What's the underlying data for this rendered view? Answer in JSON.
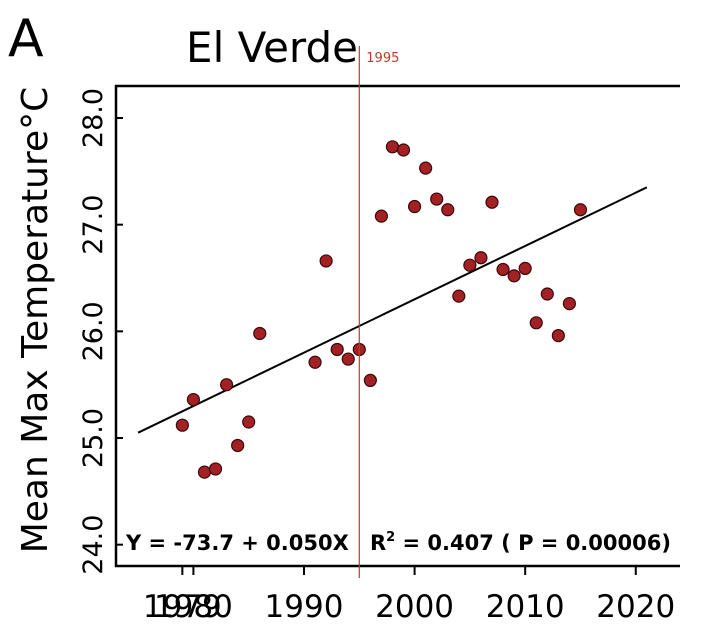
{
  "panel_label": "A",
  "chart_data": {
    "type": "scatter",
    "title": "El Verde",
    "xlabel": "",
    "ylabel": "Mean Max Temperature°C",
    "xlim": [
      1973,
      2024
    ],
    "ylim": [
      23.8,
      28.3
    ],
    "x_ticks": [
      1979,
      1980,
      1990,
      2000,
      2010,
      2020
    ],
    "y_ticks": [
      24.0,
      25.0,
      26.0,
      27.0,
      28.0
    ],
    "y_tick_labels": [
      "24.0",
      "25.0",
      "26.0",
      "27.0",
      "28.0"
    ],
    "grid": false,
    "colors": {
      "points": "#a32025",
      "point_edge": "#3a0a0a",
      "line": "#000000",
      "marker": "#c0392b"
    },
    "series": [
      {
        "points": [
          [
            1979,
            25.12
          ],
          [
            1980,
            25.36
          ],
          [
            1981,
            24.68
          ],
          [
            1982,
            24.71
          ],
          [
            1983,
            25.5
          ],
          [
            1984,
            24.93
          ],
          [
            1985,
            25.15
          ],
          [
            1986,
            25.98
          ],
          [
            1991,
            25.71
          ],
          [
            1992,
            26.66
          ],
          [
            1993,
            25.83
          ],
          [
            1994,
            25.74
          ],
          [
            1995,
            25.83
          ],
          [
            1996,
            25.54
          ],
          [
            1997,
            27.08
          ],
          [
            1998,
            27.73
          ],
          [
            1999,
            27.7
          ],
          [
            2000,
            27.17
          ],
          [
            2001,
            27.53
          ],
          [
            2002,
            27.24
          ],
          [
            2003,
            27.14
          ],
          [
            2004,
            26.33
          ],
          [
            2005,
            26.62
          ],
          [
            2006,
            26.69
          ],
          [
            2007,
            27.21
          ],
          [
            2008,
            26.58
          ],
          [
            2009,
            26.52
          ],
          [
            2010,
            26.59
          ],
          [
            2011,
            26.08
          ],
          [
            2012,
            26.35
          ],
          [
            2013,
            25.96
          ],
          [
            2014,
            26.26
          ],
          [
            2015,
            27.14
          ]
        ]
      }
    ],
    "trendline": {
      "x": [
        1975,
        2021
      ],
      "equation_intercept": -73.7,
      "equation_slope": 0.05
    },
    "annotations": {
      "equation": "Y = -73.7 + 0.050X",
      "r2_label": "R",
      "r2_superscript": "2",
      "r2_rest": " = 0.407 ( P = 0.00006)"
    },
    "vertical_marker": {
      "x": 1995,
      "label": "1995"
    }
  }
}
